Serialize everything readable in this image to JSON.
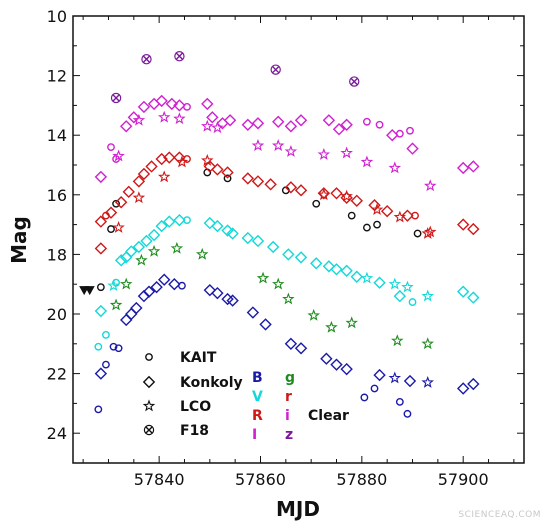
{
  "watermark": "SCIENCEAQ.COM",
  "chart_data": {
    "type": "scatter",
    "title": "",
    "xlabel": "MJD",
    "ylabel": "Mag",
    "xlim": [
      57823,
      57912
    ],
    "ylim": [
      10,
      25
    ],
    "y_inverted": true,
    "grid": false,
    "x_ticks": [
      57840,
      57860,
      57880,
      57900
    ],
    "y_ticks": [
      10,
      12,
      14,
      16,
      18,
      20,
      22,
      24
    ],
    "legend": {
      "placement": "bottom-left",
      "telescopes": [
        {
          "name": "KAIT",
          "marker": "circle"
        },
        {
          "name": "Konkoly",
          "marker": "diamond"
        },
        {
          "name": "LCO",
          "marker": "star"
        },
        {
          "name": "F18",
          "marker": "cross-x"
        }
      ],
      "bands": [
        {
          "name": "B",
          "color": "#1a1aa8"
        },
        {
          "name": "V",
          "color": "#12d8d8"
        },
        {
          "name": "R",
          "color": "#d01818"
        },
        {
          "name": "I",
          "color": "#d020d0"
        },
        {
          "name": "g",
          "color": "#1e8c1e"
        },
        {
          "name": "r",
          "color": "#d01818"
        },
        {
          "name": "i",
          "color": "#d020d0"
        },
        {
          "name": "z",
          "color": "#7a1a9a"
        },
        {
          "name": "Clear",
          "color": "#111111"
        }
      ]
    },
    "series": [
      {
        "name": "Clear",
        "color": "#111111",
        "points": [
          [
            57828.5,
            19.1,
            "circle"
          ],
          [
            57830.5,
            17.15,
            "circle"
          ],
          [
            57831.5,
            16.3,
            "circle"
          ],
          [
            57849.5,
            15.25,
            "circle"
          ],
          [
            57853.5,
            15.45,
            "circle"
          ],
          [
            57865,
            15.85,
            "circle"
          ],
          [
            57871,
            16.3,
            "circle"
          ],
          [
            57878,
            16.7,
            "circle"
          ],
          [
            57881,
            17.1,
            "circle"
          ],
          [
            57883,
            17.0,
            "circle"
          ],
          [
            57891,
            17.3,
            "circle"
          ]
        ],
        "upper_limits": [
          57825.2,
          57826.3
        ]
      },
      {
        "name": "B",
        "color": "#1a1aa8",
        "points": [
          [
            57828,
            23.2,
            "circle"
          ],
          [
            57828.5,
            22.0,
            "diamond"
          ],
          [
            57829.5,
            21.7,
            "circle"
          ],
          [
            57831,
            21.1,
            "circle"
          ],
          [
            57832,
            21.15,
            "circle"
          ],
          [
            57833.5,
            20.2,
            "diamond"
          ],
          [
            57834.5,
            20.0,
            "diamond"
          ],
          [
            57835.5,
            19.8,
            "diamond"
          ],
          [
            57837,
            19.4,
            "diamond"
          ],
          [
            57838,
            19.25,
            "diamond"
          ],
          [
            57839.5,
            19.1,
            "diamond"
          ],
          [
            57841,
            18.85,
            "diamond"
          ],
          [
            57843,
            19.0,
            "diamond"
          ],
          [
            57844.5,
            19.05,
            "circle"
          ],
          [
            57850,
            19.2,
            "diamond"
          ],
          [
            57851.5,
            19.3,
            "diamond"
          ],
          [
            57853.5,
            19.5,
            "diamond"
          ],
          [
            57854.5,
            19.55,
            "diamond"
          ],
          [
            57858.5,
            19.95,
            "diamond"
          ],
          [
            57861,
            20.35,
            "diamond"
          ],
          [
            57866,
            21.0,
            "diamond"
          ],
          [
            57868,
            21.15,
            "diamond"
          ],
          [
            57873,
            21.5,
            "diamond"
          ],
          [
            57875,
            21.7,
            "diamond"
          ],
          [
            57877,
            21.85,
            "diamond"
          ],
          [
            57880.5,
            22.8,
            "circle"
          ],
          [
            57882.5,
            22.5,
            "circle"
          ],
          [
            57883.5,
            22.05,
            "diamond"
          ],
          [
            57886.5,
            22.15,
            "star"
          ],
          [
            57887.5,
            22.95,
            "circle"
          ],
          [
            57889,
            23.35,
            "circle"
          ],
          [
            57889.5,
            22.25,
            "diamond"
          ],
          [
            57893,
            22.3,
            "star"
          ],
          [
            57900,
            22.5,
            "diamond"
          ],
          [
            57902,
            22.35,
            "diamond"
          ]
        ]
      },
      {
        "name": "V",
        "color": "#12d8d8",
        "points": [
          [
            57828,
            21.1,
            "circle"
          ],
          [
            57828.5,
            19.9,
            "diamond"
          ],
          [
            57829.5,
            20.7,
            "circle"
          ],
          [
            57831,
            19.05,
            "star"
          ],
          [
            57831.5,
            18.95,
            "circle"
          ],
          [
            57832.5,
            18.2,
            "diamond"
          ],
          [
            57833.5,
            18.1,
            "diamond"
          ],
          [
            57834.5,
            17.9,
            "diamond"
          ],
          [
            57836,
            17.75,
            "diamond"
          ],
          [
            57837.5,
            17.55,
            "diamond"
          ],
          [
            57839,
            17.35,
            "diamond"
          ],
          [
            57840.5,
            17.05,
            "diamond"
          ],
          [
            57842,
            16.9,
            "diamond"
          ],
          [
            57844,
            16.85,
            "diamond"
          ],
          [
            57845.5,
            16.85,
            "circle"
          ],
          [
            57850,
            16.95,
            "diamond"
          ],
          [
            57851.5,
            17.05,
            "diamond"
          ],
          [
            57853.5,
            17.2,
            "diamond"
          ],
          [
            57854.5,
            17.3,
            "diamond"
          ],
          [
            57857.5,
            17.45,
            "diamond"
          ],
          [
            57859.5,
            17.55,
            "diamond"
          ],
          [
            57862.5,
            17.75,
            "diamond"
          ],
          [
            57865.5,
            18.0,
            "diamond"
          ],
          [
            57868,
            18.1,
            "diamond"
          ],
          [
            57871,
            18.3,
            "diamond"
          ],
          [
            57873.5,
            18.4,
            "diamond"
          ],
          [
            57875,
            18.5,
            "diamond"
          ],
          [
            57877,
            18.55,
            "diamond"
          ],
          [
            57879,
            18.75,
            "diamond"
          ],
          [
            57881,
            18.8,
            "star"
          ],
          [
            57883.5,
            18.95,
            "diamond"
          ],
          [
            57886.5,
            19.0,
            "star"
          ],
          [
            57887.5,
            19.4,
            "diamond"
          ],
          [
            57889,
            19.1,
            "star"
          ],
          [
            57890,
            19.6,
            "circle"
          ],
          [
            57893,
            19.4,
            "star"
          ],
          [
            57900,
            19.25,
            "diamond"
          ],
          [
            57902,
            19.45,
            "diamond"
          ]
        ]
      },
      {
        "name": "g",
        "color": "#1e8c1e",
        "points": [
          [
            57831.5,
            19.7,
            "star"
          ],
          [
            57833.5,
            19.0,
            "star"
          ],
          [
            57836.5,
            18.2,
            "star"
          ],
          [
            57839,
            17.9,
            "star"
          ],
          [
            57843.5,
            17.8,
            "star"
          ],
          [
            57848.5,
            18.0,
            "star"
          ],
          [
            57860.5,
            18.8,
            "star"
          ],
          [
            57863.5,
            19.0,
            "star"
          ],
          [
            57865.5,
            19.5,
            "star"
          ],
          [
            57870.5,
            20.05,
            "star"
          ],
          [
            57874,
            20.45,
            "star"
          ],
          [
            57878,
            20.3,
            "star"
          ],
          [
            57887,
            20.9,
            "star"
          ],
          [
            57893,
            21.0,
            "star"
          ]
        ]
      },
      {
        "name": "R",
        "color": "#d01818",
        "points": [
          [
            57828.5,
            16.9,
            "diamond"
          ],
          [
            57829.5,
            16.7,
            "circle"
          ],
          [
            57830.5,
            16.6,
            "diamond"
          ],
          [
            57832.5,
            16.25,
            "diamond"
          ],
          [
            57834,
            15.9,
            "diamond"
          ],
          [
            57836,
            15.55,
            "diamond"
          ],
          [
            57837,
            15.3,
            "diamond"
          ],
          [
            57838.5,
            15.05,
            "diamond"
          ],
          [
            57840.5,
            14.8,
            "diamond"
          ],
          [
            57842,
            14.75,
            "diamond"
          ],
          [
            57844,
            14.75,
            "diamond"
          ],
          [
            57845.5,
            14.8,
            "circle"
          ],
          [
            57850,
            15.05,
            "diamond"
          ],
          [
            57851.5,
            15.15,
            "diamond"
          ],
          [
            57853.5,
            15.25,
            "diamond"
          ],
          [
            57857.5,
            15.45,
            "diamond"
          ],
          [
            57859.5,
            15.55,
            "diamond"
          ],
          [
            57862,
            15.65,
            "diamond"
          ],
          [
            57866,
            15.75,
            "diamond"
          ],
          [
            57868,
            15.85,
            "diamond"
          ],
          [
            57872.5,
            15.95,
            "diamond"
          ],
          [
            57875,
            15.95,
            "diamond"
          ],
          [
            57877,
            16.1,
            "diamond"
          ],
          [
            57879,
            16.2,
            "diamond"
          ],
          [
            57882.5,
            16.35,
            "diamond"
          ],
          [
            57885,
            16.55,
            "diamond"
          ],
          [
            57889,
            16.7,
            "diamond"
          ],
          [
            57890.5,
            16.7,
            "circle"
          ],
          [
            57893,
            17.3,
            "star"
          ],
          [
            57900,
            17.0,
            "diamond"
          ],
          [
            57902,
            17.15,
            "diamond"
          ]
        ]
      },
      {
        "name": "r",
        "color": "#d01818",
        "points": [
          [
            57828.5,
            17.8,
            "diamond"
          ],
          [
            57832,
            17.1,
            "star"
          ],
          [
            57836,
            16.1,
            "star"
          ],
          [
            57841,
            15.4,
            "star"
          ],
          [
            57844.5,
            14.9,
            "star"
          ],
          [
            57849.5,
            14.85,
            "star"
          ],
          [
            57872.5,
            16.0,
            "star"
          ],
          [
            57877,
            16.05,
            "star"
          ],
          [
            57883,
            16.5,
            "star"
          ],
          [
            57887.5,
            16.75,
            "star"
          ],
          [
            57893.5,
            17.25,
            "star"
          ]
        ]
      },
      {
        "name": "I",
        "color": "#d020d0",
        "points": [
          [
            57828.5,
            15.4,
            "diamond"
          ],
          [
            57830.5,
            14.4,
            "circle"
          ],
          [
            57831.5,
            14.8,
            "circle"
          ],
          [
            57833.5,
            13.7,
            "diamond"
          ],
          [
            57835,
            13.4,
            "diamond"
          ],
          [
            57837,
            13.05,
            "diamond"
          ],
          [
            57839,
            12.95,
            "diamond"
          ],
          [
            57840.5,
            12.85,
            "diamond"
          ],
          [
            57842.5,
            12.95,
            "diamond"
          ],
          [
            57844,
            13.0,
            "diamond"
          ],
          [
            57845.5,
            13.05,
            "circle"
          ],
          [
            57849.5,
            12.95,
            "diamond"
          ],
          [
            57850.5,
            13.4,
            "diamond"
          ],
          [
            57852.5,
            13.6,
            "diamond"
          ],
          [
            57854,
            13.5,
            "diamond"
          ],
          [
            57857.5,
            13.65,
            "diamond"
          ],
          [
            57859.5,
            13.6,
            "diamond"
          ],
          [
            57863.5,
            13.55,
            "diamond"
          ],
          [
            57866,
            13.7,
            "diamond"
          ],
          [
            57868,
            13.5,
            "diamond"
          ],
          [
            57873.5,
            13.5,
            "diamond"
          ],
          [
            57875.5,
            13.8,
            "diamond"
          ],
          [
            57877,
            13.65,
            "diamond"
          ],
          [
            57881,
            13.55,
            "circle"
          ],
          [
            57883.5,
            13.65,
            "circle"
          ],
          [
            57886,
            14.0,
            "diamond"
          ],
          [
            57887.5,
            13.95,
            "circle"
          ],
          [
            57889.5,
            13.85,
            "circle"
          ],
          [
            57890,
            14.45,
            "diamond"
          ],
          [
            57900,
            15.1,
            "diamond"
          ],
          [
            57902,
            15.05,
            "diamond"
          ]
        ]
      },
      {
        "name": "i",
        "color": "#d020d0",
        "points": [
          [
            57832,
            14.7,
            "star"
          ],
          [
            57836,
            13.5,
            "star"
          ],
          [
            57841,
            13.4,
            "star"
          ],
          [
            57844,
            13.45,
            "star"
          ],
          [
            57849.5,
            13.7,
            "star"
          ],
          [
            57851.5,
            13.75,
            "star"
          ],
          [
            57859.5,
            14.35,
            "star"
          ],
          [
            57863.5,
            14.35,
            "star"
          ],
          [
            57866,
            14.55,
            "star"
          ],
          [
            57872.5,
            14.65,
            "star"
          ],
          [
            57877,
            14.6,
            "star"
          ],
          [
            57881,
            14.9,
            "star"
          ],
          [
            57886.5,
            15.1,
            "star"
          ],
          [
            57893.5,
            15.7,
            "star"
          ]
        ]
      },
      {
        "name": "z",
        "color": "#7a1a9a",
        "points": [
          [
            57831.5,
            12.75,
            "cross-x"
          ],
          [
            57837.5,
            11.45,
            "cross-x"
          ],
          [
            57844,
            11.35,
            "cross-x"
          ],
          [
            57863,
            11.8,
            "cross-x"
          ],
          [
            57878.5,
            12.2,
            "cross-x"
          ]
        ]
      }
    ]
  }
}
